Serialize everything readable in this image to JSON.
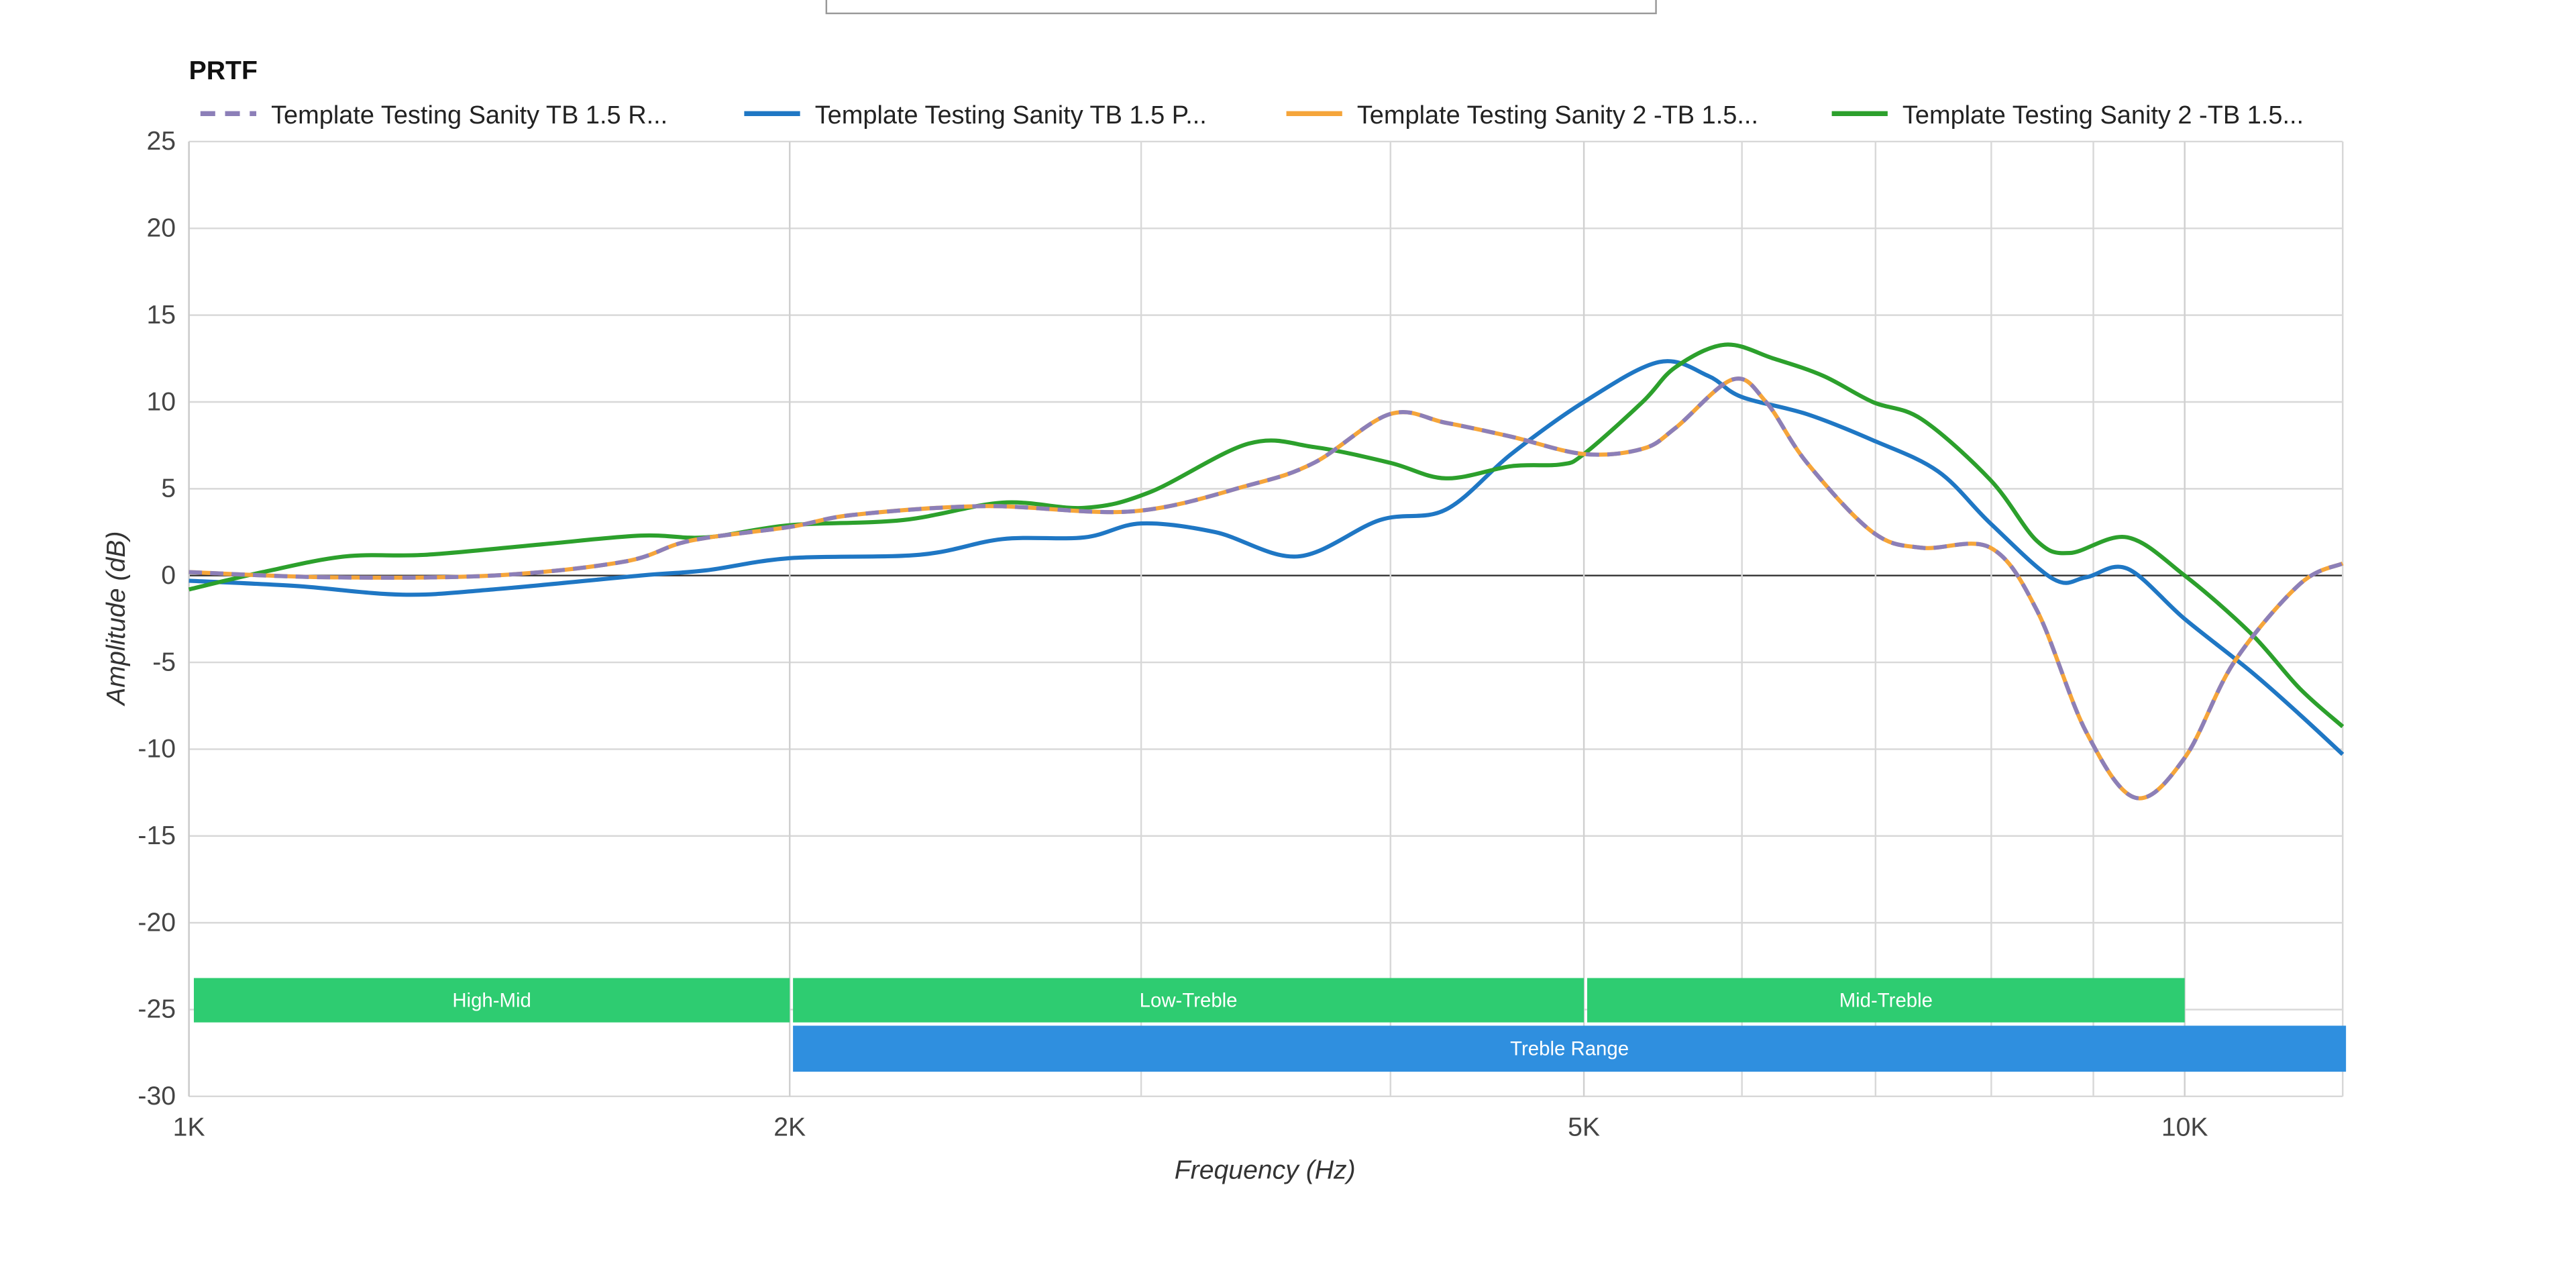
{
  "chart_data": {
    "type": "line",
    "title": "PRTF",
    "xlabel": "Frequency (Hz)",
    "ylabel": "Amplitude (dB)",
    "x_scale": "log",
    "xlim": [
      1000,
      12000
    ],
    "ylim": [
      -30,
      25
    ],
    "grid": true,
    "legend_position": "top",
    "x_ticks": [
      {
        "value": 1000,
        "label": "1K"
      },
      {
        "value": 2000,
        "label": "2K"
      },
      {
        "value": 5000,
        "label": "5K"
      },
      {
        "value": 10000,
        "label": "10K"
      }
    ],
    "x_minor_gridlines": [
      3000,
      4000,
      6000,
      7000,
      8000,
      9000
    ],
    "y_ticks": [
      25,
      20,
      15,
      10,
      5,
      0,
      -5,
      -10,
      -15,
      -20,
      -25,
      -30
    ],
    "series": [
      {
        "name": "Template Testing Sanity TB 1.5 R...",
        "color": "#8c7fb8",
        "dash": true,
        "points": [
          [
            1000,
            0.2
          ],
          [
            1175,
            -0.1
          ],
          [
            1420,
            0
          ],
          [
            1652,
            0.8
          ],
          [
            1782,
            2
          ],
          [
            2000,
            2.8
          ],
          [
            2154,
            3.5
          ],
          [
            2506,
            4
          ],
          [
            2972,
            3.7
          ],
          [
            3396,
            5.2
          ],
          [
            3663,
            6.5
          ],
          [
            3997,
            9.3
          ],
          [
            4264,
            8.8
          ],
          [
            4598,
            8
          ],
          [
            5000,
            7
          ],
          [
            5350,
            7.3
          ],
          [
            5557,
            8.5
          ],
          [
            5937,
            11.3
          ],
          [
            6169,
            10
          ],
          [
            6467,
            6.5
          ],
          [
            6977,
            2.5
          ],
          [
            7384,
            1.6
          ],
          [
            7993,
            1.6
          ],
          [
            8432,
            -2
          ],
          [
            8925,
            -9
          ],
          [
            9447,
            -12.8
          ],
          [
            10000,
            -10.5
          ],
          [
            10585,
            -5
          ],
          [
            11418,
            -0.5
          ],
          [
            12000,
            0.7
          ]
        ]
      },
      {
        "name": "Template Testing Sanity TB 1.5 P...",
        "color": "#1f77c4",
        "dash": false,
        "points": [
          [
            1000,
            -0.3
          ],
          [
            1131,
            -0.6
          ],
          [
            1279,
            -1.1
          ],
          [
            1420,
            -0.8
          ],
          [
            1684,
            0
          ],
          [
            1816,
            0.3
          ],
          [
            2000,
            1
          ],
          [
            2324,
            1.2
          ],
          [
            2556,
            2.1
          ],
          [
            2810,
            2.2
          ],
          [
            3000,
            3
          ],
          [
            3268,
            2.5
          ],
          [
            3594,
            1.1
          ],
          [
            3952,
            3.2
          ],
          [
            4264,
            3.8
          ],
          [
            4598,
            7
          ],
          [
            5000,
            10
          ],
          [
            5453,
            12.3
          ],
          [
            5771,
            11.5
          ],
          [
            5995,
            10.3
          ],
          [
            6467,
            9.3
          ],
          [
            6977,
            7.8
          ],
          [
            7524,
            6
          ],
          [
            7993,
            3
          ],
          [
            8594,
            -0.2
          ],
          [
            8925,
            -0.1
          ],
          [
            9359,
            0.4
          ],
          [
            10000,
            -2.5
          ],
          [
            10787,
            -5.5
          ],
          [
            11418,
            -8
          ],
          [
            12000,
            -10.3
          ]
        ]
      },
      {
        "name": "Template Testing Sanity 2 -TB 1.5...",
        "color": "#f5a53a",
        "dash": false,
        "points": [
          [
            1000,
            0.2
          ],
          [
            1175,
            -0.1
          ],
          [
            1420,
            0
          ],
          [
            1652,
            0.8
          ],
          [
            1782,
            2
          ],
          [
            2000,
            2.8
          ],
          [
            2154,
            3.5
          ],
          [
            2506,
            4
          ],
          [
            2972,
            3.7
          ],
          [
            3396,
            5.2
          ],
          [
            3663,
            6.5
          ],
          [
            3997,
            9.3
          ],
          [
            4264,
            8.8
          ],
          [
            4598,
            8
          ],
          [
            5000,
            7
          ],
          [
            5350,
            7.3
          ],
          [
            5557,
            8.5
          ],
          [
            5937,
            11.3
          ],
          [
            6169,
            10
          ],
          [
            6467,
            6.5
          ],
          [
            6977,
            2.5
          ],
          [
            7384,
            1.6
          ],
          [
            7993,
            1.6
          ],
          [
            8432,
            -2
          ],
          [
            8925,
            -9
          ],
          [
            9447,
            -12.8
          ],
          [
            10000,
            -10.5
          ],
          [
            10585,
            -5
          ],
          [
            11418,
            -0.5
          ],
          [
            12000,
            0.7
          ]
        ]
      },
      {
        "name": "Template Testing Sanity 2 -TB 1.5...",
        "color": "#2ca02c",
        "dash": false,
        "points": [
          [
            1000,
            -0.8
          ],
          [
            1089,
            0.2
          ],
          [
            1197,
            1.1
          ],
          [
            1316,
            1.2
          ],
          [
            1503,
            1.8
          ],
          [
            1684,
            2.3
          ],
          [
            1816,
            2.2
          ],
          [
            2000,
            2.9
          ],
          [
            2280,
            3.2
          ],
          [
            2556,
            4.2
          ],
          [
            2810,
            3.9
          ],
          [
            3030,
            4.8
          ],
          [
            3396,
            7.6
          ],
          [
            3663,
            7.4
          ],
          [
            3997,
            6.5
          ],
          [
            4264,
            5.6
          ],
          [
            4598,
            6.3
          ],
          [
            4868,
            6.4
          ],
          [
            5000,
            7
          ],
          [
            5350,
            10
          ],
          [
            5557,
            12
          ],
          [
            5883,
            13.3
          ],
          [
            6223,
            12.5
          ],
          [
            6591,
            11.5
          ],
          [
            6977,
            10
          ],
          [
            7384,
            9
          ],
          [
            7993,
            5.5
          ],
          [
            8432,
            2
          ],
          [
            8759,
            1.3
          ],
          [
            9359,
            2.2
          ],
          [
            10000,
            0
          ],
          [
            10787,
            -3.3
          ],
          [
            11418,
            -6.5
          ],
          [
            12000,
            -8.7
          ]
        ]
      }
    ],
    "bands": [
      {
        "label": "High-Mid",
        "from": 1000,
        "to": 2000,
        "color": "#2ecc71",
        "row": 0
      },
      {
        "label": "Low-Treble",
        "from": 2000,
        "to": 5000,
        "color": "#2ecc71",
        "row": 0
      },
      {
        "label": "Mid-Treble",
        "from": 5000,
        "to": 10000,
        "color": "#2ecc71",
        "row": 0
      },
      {
        "label": "Treble Range",
        "from": 2000,
        "to": 12000,
        "color": "#2f8fdf",
        "row": 1
      }
    ]
  }
}
